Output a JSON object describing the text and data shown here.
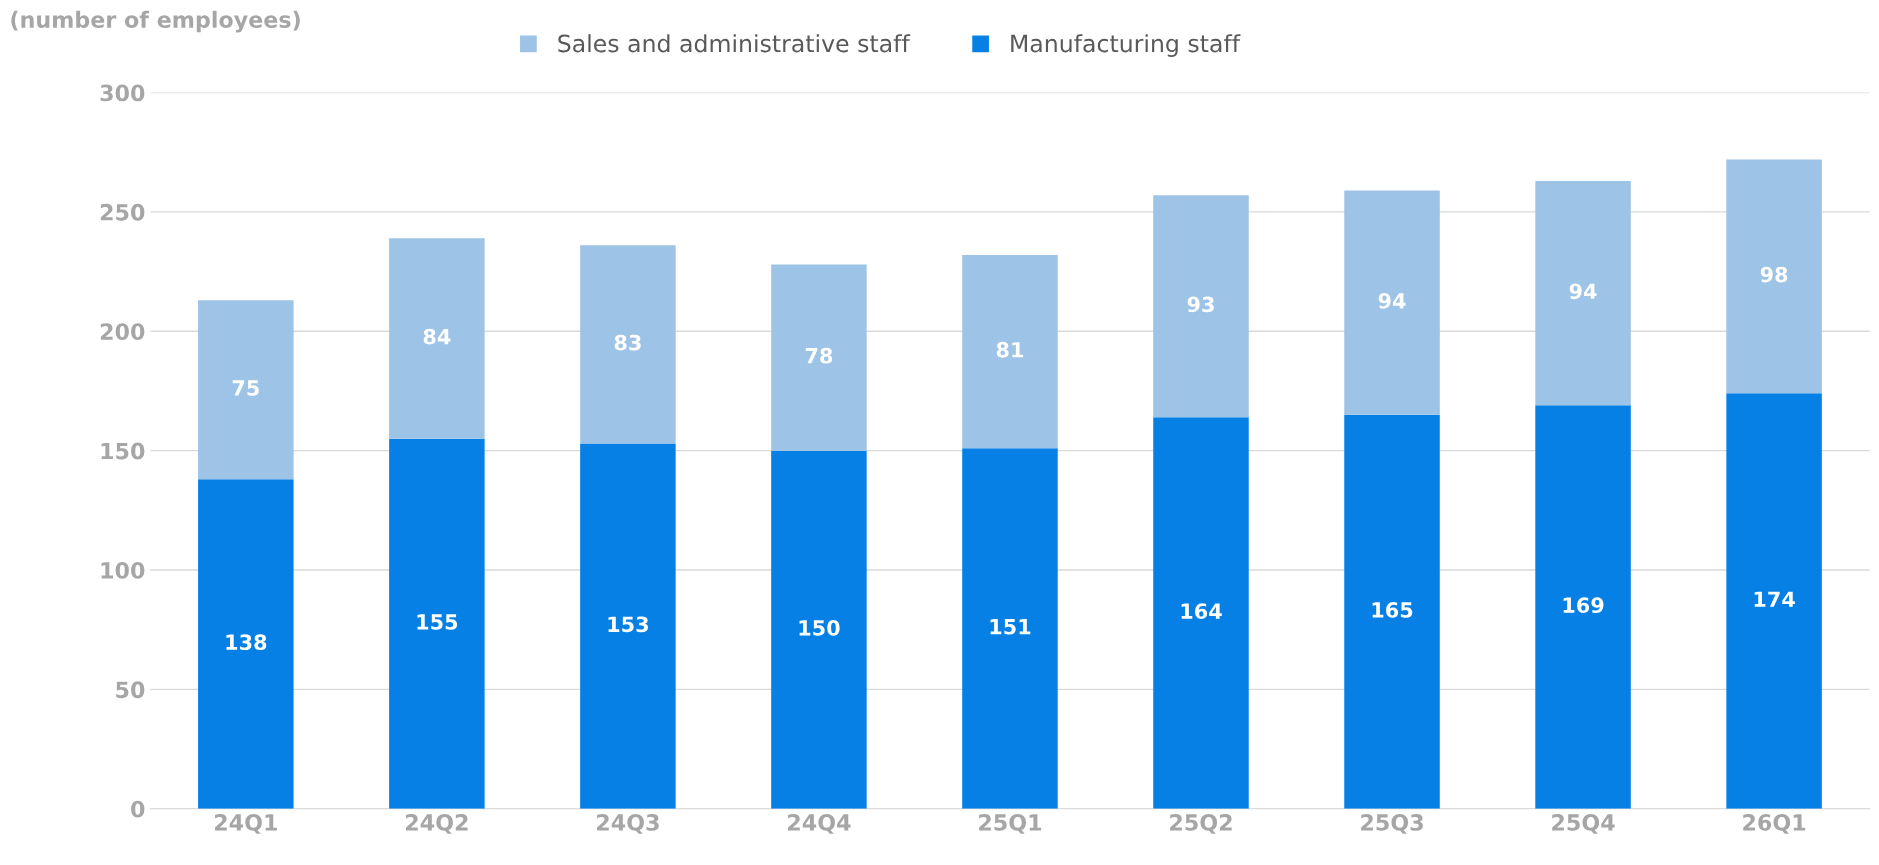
{
  "chart_data": {
    "type": "bar",
    "ylabel": "(number of employees)",
    "categories": [
      "24Q1",
      "24Q2",
      "24Q3",
      "24Q4",
      "25Q1",
      "25Q2",
      "25Q3",
      "25Q4",
      "26Q1"
    ],
    "stacked": true,
    "series": [
      {
        "name": "Manufacturing staff",
        "color": "#0780e6",
        "values": [
          138,
          155,
          153,
          150,
          151,
          164,
          165,
          169,
          174
        ]
      },
      {
        "name": "Sales and administrative staff",
        "color": "#9dc3e6",
        "values": [
          75,
          84,
          83,
          78,
          81,
          93,
          94,
          94,
          98
        ]
      }
    ],
    "ylim": [
      0,
      300
    ],
    "yticks": [
      0,
      50,
      100,
      150,
      200,
      250,
      300
    ],
    "grid": "y",
    "legend": "top",
    "data_labels": true
  }
}
